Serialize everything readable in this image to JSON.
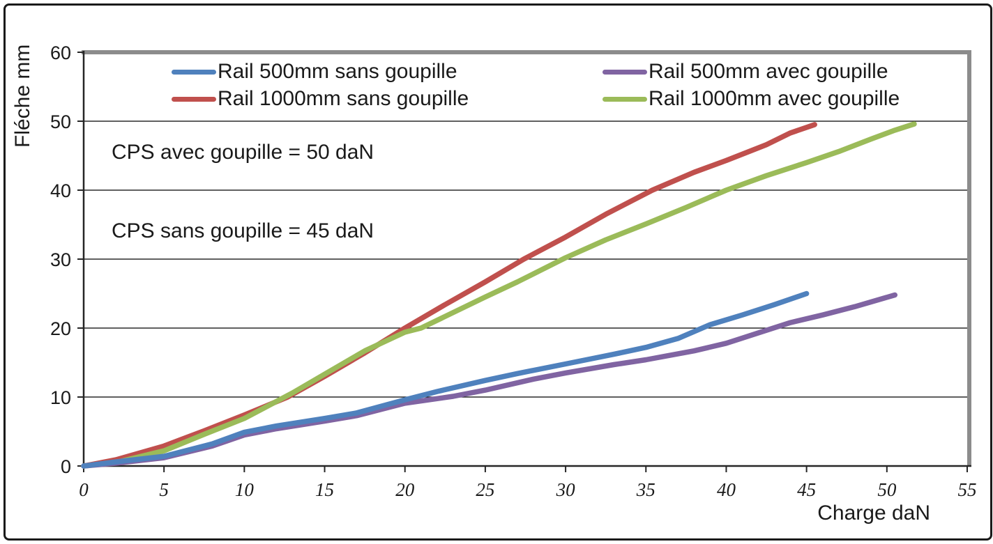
{
  "annotations": {
    "cps_avec": "CPS avec goupille = 50 daN",
    "cps_sans": "CPS sans goupille = 45 daN"
  },
  "chart_data": {
    "type": "line",
    "title": "",
    "xlabel": "Charge daN",
    "ylabel": "Fléche mm",
    "xlim": [
      0,
      55
    ],
    "ylim": [
      0,
      60
    ],
    "x_ticks": [
      0,
      5,
      10,
      15,
      20,
      25,
      30,
      35,
      40,
      45,
      50,
      55
    ],
    "y_ticks": [
      0,
      10,
      20,
      30,
      40,
      50,
      60
    ],
    "grid": "horizontal-only",
    "legend_position": "inside-top, two columns",
    "legend_columns": [
      [
        0,
        1
      ],
      [
        2,
        3
      ]
    ],
    "series": [
      {
        "name": "Rail 500mm sans goupille",
        "color": "#4F81BD",
        "points": [
          [
            0,
            0
          ],
          [
            2,
            0.6
          ],
          [
            5,
            1.4
          ],
          [
            8,
            3.2
          ],
          [
            10,
            4.9
          ],
          [
            12,
            5.8
          ],
          [
            15,
            6.9
          ],
          [
            17,
            7.7
          ],
          [
            20,
            9.6
          ],
          [
            22,
            10.8
          ],
          [
            25,
            12.4
          ],
          [
            27,
            13.4
          ],
          [
            30,
            14.8
          ],
          [
            33,
            16.2
          ],
          [
            35,
            17.2
          ],
          [
            37,
            18.5
          ],
          [
            39,
            20.5
          ],
          [
            41,
            21.9
          ],
          [
            43,
            23.4
          ],
          [
            45,
            25
          ]
        ]
      },
      {
        "name": "Rail 1000mm sans goupille",
        "color": "#C0504D",
        "points": [
          [
            0,
            0
          ],
          [
            2,
            0.9
          ],
          [
            5,
            2.9
          ],
          [
            7.5,
            5.1
          ],
          [
            10,
            7.4
          ],
          [
            12.7,
            10
          ],
          [
            15,
            13
          ],
          [
            17.5,
            16.4
          ],
          [
            20,
            20
          ],
          [
            22.5,
            23.4
          ],
          [
            25,
            26.7
          ],
          [
            27.4,
            30
          ],
          [
            30,
            33.2
          ],
          [
            32.5,
            36.5
          ],
          [
            35.4,
            40
          ],
          [
            38,
            42.6
          ],
          [
            40,
            44.3
          ],
          [
            42.5,
            46.6
          ],
          [
            44,
            48.3
          ],
          [
            45.5,
            49.5
          ]
        ]
      },
      {
        "name": "Rail 500mm avec goupille",
        "color": "#8064A2",
        "points": [
          [
            0,
            0
          ],
          [
            2,
            0.4
          ],
          [
            5,
            1.2
          ],
          [
            8,
            2.9
          ],
          [
            10,
            4.5
          ],
          [
            12,
            5.4
          ],
          [
            15,
            6.5
          ],
          [
            17,
            7.3
          ],
          [
            20,
            9.1
          ],
          [
            23,
            10.1
          ],
          [
            25,
            11
          ],
          [
            28,
            12.6
          ],
          [
            30,
            13.5
          ],
          [
            33,
            14.7
          ],
          [
            35,
            15.4
          ],
          [
            38,
            16.7
          ],
          [
            40,
            17.8
          ],
          [
            42,
            19.3
          ],
          [
            44,
            20.8
          ],
          [
            46,
            21.9
          ],
          [
            48,
            23.1
          ],
          [
            50.5,
            24.8
          ]
        ]
      },
      {
        "name": "Rail 1000mm avec goupille",
        "color": "#9BBB59",
        "points": [
          [
            0,
            0
          ],
          [
            2,
            0.5
          ],
          [
            5,
            2.2
          ],
          [
            7.5,
            4.6
          ],
          [
            10,
            6.9
          ],
          [
            13,
            10.6
          ],
          [
            15,
            13.3
          ],
          [
            17.5,
            16.7
          ],
          [
            20,
            19.4
          ],
          [
            21,
            20
          ],
          [
            25,
            24.5
          ],
          [
            27,
            26.7
          ],
          [
            30,
            30.2
          ],
          [
            32.5,
            32.8
          ],
          [
            35,
            35.1
          ],
          [
            37.5,
            37.5
          ],
          [
            40,
            40
          ],
          [
            42.5,
            42.1
          ],
          [
            45,
            44
          ],
          [
            47,
            45.6
          ],
          [
            49,
            47.4
          ],
          [
            50.5,
            48.7
          ],
          [
            51.7,
            49.6
          ]
        ]
      }
    ],
    "style_colors": {
      "gridline": "#000000",
      "axis": "#262626",
      "plot_top_right_border": "#8C8C8C",
      "outer_border": "#1A1A1A",
      "background": "#FFFFFF",
      "text": "#1A1A1A"
    }
  }
}
